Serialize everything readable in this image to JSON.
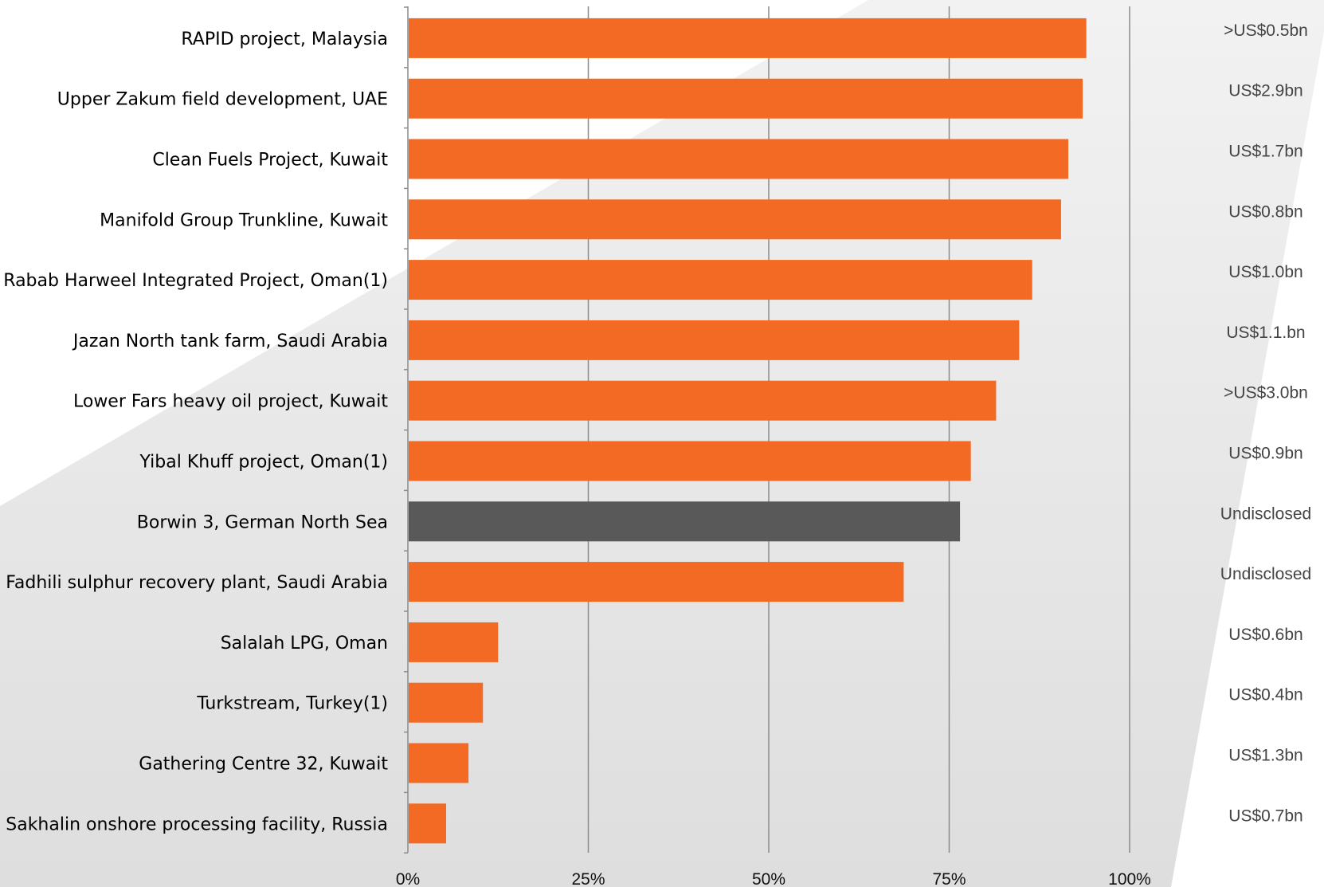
{
  "chart_data": {
    "type": "bar",
    "orientation": "horizontal",
    "categories": [
      "RAPID project, Malaysia",
      "Upper Zakum field development, UAE",
      "Clean Fuels Project, Kuwait",
      "Manifold Group Trunkline, Kuwait",
      "Rabab Harweel Integrated Project, Oman(1)",
      "Jazan North tank farm, Saudi Arabia",
      "Lower Fars heavy oil project, Kuwait",
      "Yibal Khuff project, Oman(1)",
      "Borwin 3, German North Sea",
      "Fadhili sulphur recovery plant, Saudi Arabia",
      "Salalah LPG, Oman",
      "Turkstream, Turkey(1)",
      "Gathering Centre 32, Kuwait",
      "Sakhalin onshore processing facility, Russia"
    ],
    "values": [
      94,
      93.5,
      91.5,
      90.5,
      86.5,
      84.7,
      81.5,
      78,
      76.5,
      68.7,
      12.5,
      10.4,
      8.4,
      5.3
    ],
    "value_labels": [
      ">US$0.5bn",
      "US$2.9bn",
      "US$1.7bn",
      "US$0.8bn",
      "US$1.0bn",
      "US$1.1.bn",
      ">US$3.0bn",
      "US$0.9bn",
      "Undisclosed",
      "Undisclosed",
      "US$0.6bn",
      "US$0.4bn",
      "US$1.3bn",
      "US$0.7bn"
    ],
    "highlight_index": 8,
    "xlim": [
      0,
      100
    ],
    "xticks": [
      "0%",
      "25%",
      "50%",
      "75%",
      "100%"
    ],
    "grid": true,
    "title": "",
    "xlabel": "",
    "ylabel": "",
    "colors": {
      "bar": "#F26A24",
      "highlight": "#595959",
      "grid": "#8c8c8c",
      "background_band": "#e3e3e3"
    }
  }
}
